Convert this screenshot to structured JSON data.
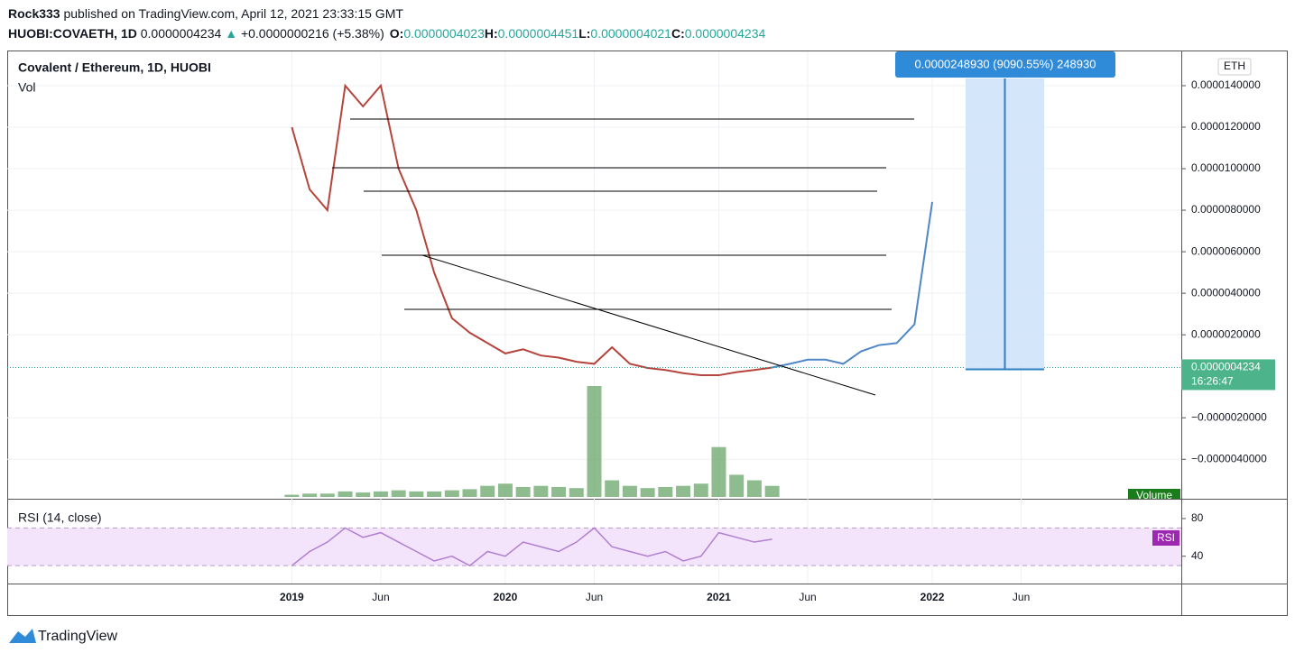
{
  "header": {
    "author": "Rock333",
    "published": "published on TradingView.com, April 12, 2021 23:33:15 GMT",
    "symbol": "HUOBI:COVAETH, 1D",
    "last": "0.0000004234",
    "arrow": "▲",
    "change": "+0.0000000216 (+5.38%)",
    "ohlc": [
      {
        "label": "O:",
        "value": "0.0000004023"
      },
      {
        "label": "H:",
        "value": "0.0000004451"
      },
      {
        "label": "L:",
        "value": "0.0000004021"
      },
      {
        "label": "C:",
        "value": "0.0000004234"
      }
    ]
  },
  "chart_data": [
    {
      "type": "line",
      "title": "Covalent / Ethereum, 1D, HUOBI",
      "subtitle": "Vol",
      "unit": "ETH",
      "x": [
        "2019-01",
        "2019-02",
        "2019-03",
        "2019-04",
        "2019-05",
        "2019-06",
        "2019-07",
        "2019-08",
        "2019-09",
        "2019-10",
        "2019-11",
        "2019-12",
        "2020-01",
        "2020-02",
        "2020-03",
        "2020-04",
        "2020-05",
        "2020-06",
        "2020-07",
        "2020-08",
        "2020-09",
        "2020-10",
        "2020-11",
        "2020-12",
        "2021-01",
        "2021-02",
        "2021-03",
        "2021-04",
        "2021-05",
        "2021-06",
        "2021-07",
        "2021-08",
        "2021-09",
        "2021-10",
        "2021-11",
        "2021-12",
        "2022-01"
      ],
      "series": [
        {
          "color": "#b5443c",
          "values": [
            1.2e-05,
            9e-06,
            8e-06,
            1.4e-05,
            1.3e-05,
            1.4e-05,
            1e-05,
            8e-06,
            5e-06,
            2.8e-06,
            2.1e-06,
            1.6e-06,
            1.1e-06,
            1.3e-06,
            1e-06,
            9e-07,
            7e-07,
            6e-07,
            1.4e-06,
            6e-07,
            4e-07,
            3e-07,
            1.5e-07,
            5e-08,
            5e-08,
            2e-07,
            3e-07,
            4.234e-07,
            null,
            null,
            null,
            null,
            null,
            null,
            null,
            null,
            null
          ]
        },
        {
          "color": "#4f86c6",
          "values": [
            null,
            null,
            null,
            null,
            null,
            null,
            null,
            null,
            null,
            null,
            null,
            null,
            null,
            null,
            null,
            null,
            null,
            null,
            null,
            null,
            null,
            null,
            null,
            null,
            null,
            null,
            null,
            4.234e-07,
            6e-07,
            8e-07,
            8e-07,
            6e-07,
            1.2e-06,
            1.5e-06,
            1.6e-06,
            2.5e-06,
            8.4e-06
          ]
        }
      ],
      "xlim": [
        "2017-09",
        "2023-03"
      ],
      "xticks": [
        {
          "value": "2019-01",
          "label": "2019"
        },
        {
          "value": "2019-06",
          "label": "Jun"
        },
        {
          "value": "2020-01",
          "label": "2020"
        },
        {
          "value": "2020-06",
          "label": "Jun"
        },
        {
          "value": "2021-01",
          "label": "2021"
        },
        {
          "value": "2021-06",
          "label": "Jun"
        },
        {
          "value": "2022-01",
          "label": "2022"
        },
        {
          "value": "2022-06",
          "label": "Jun"
        }
      ],
      "ylim": [
        -5.9e-06,
        1.565e-05
      ],
      "yticks": [
        {
          "value": 1.4e-05,
          "label": "0.0000140000"
        },
        {
          "value": 1.2e-05,
          "label": "0.0000120000"
        },
        {
          "value": 1e-05,
          "label": "0.0000100000"
        },
        {
          "value": 8e-06,
          "label": "0.0000080000"
        },
        {
          "value": 6e-06,
          "label": "0.0000060000"
        },
        {
          "value": 4e-06,
          "label": "0.0000040000"
        },
        {
          "value": 2e-06,
          "label": "0.0000020000"
        },
        {
          "value": -2e-06,
          "label": "−0.0000020000"
        },
        {
          "value": -4e-06,
          "label": "−0.0000040000"
        }
      ],
      "last_price": {
        "value": 4.234e-07,
        "label": "0.0000004234"
      },
      "countdown": "16:26:47",
      "measure": "0.0000248930 (9090.55%) 248930",
      "grid": true
    },
    {
      "type": "bar",
      "label": "Volume",
      "color": "#5ea05e",
      "x": [
        "2019-01",
        "2019-02",
        "2019-03",
        "2019-04",
        "2019-05",
        "2019-06",
        "2019-07",
        "2019-08",
        "2019-09",
        "2019-10",
        "2019-11",
        "2019-12",
        "2020-01",
        "2020-02",
        "2020-03",
        "2020-04",
        "2020-05",
        "2020-06",
        "2020-07",
        "2020-08",
        "2020-09",
        "2020-10",
        "2020-11",
        "2020-12",
        "2021-01",
        "2021-02",
        "2021-03",
        "2021-04"
      ],
      "values": [
        2,
        3,
        3,
        5,
        4,
        5,
        6,
        5,
        5,
        6,
        7,
        10,
        12,
        9,
        10,
        9,
        8,
        100,
        15,
        10,
        8,
        9,
        10,
        12,
        45,
        20,
        15,
        10
      ],
      "ylim": [
        0,
        100
      ]
    },
    {
      "type": "line",
      "title": "RSI (14, close)",
      "label": "RSI",
      "color": "#b07fd0",
      "x": [
        "2019-01",
        "2019-02",
        "2019-03",
        "2019-04",
        "2019-05",
        "2019-06",
        "2019-07",
        "2019-08",
        "2019-09",
        "2019-10",
        "2019-11",
        "2019-12",
        "2020-01",
        "2020-02",
        "2020-03",
        "2020-04",
        "2020-05",
        "2020-06",
        "2020-07",
        "2020-08",
        "2020-09",
        "2020-10",
        "2020-11",
        "2020-12",
        "2021-01",
        "2021-02",
        "2021-03",
        "2021-04"
      ],
      "values": [
        30,
        45,
        55,
        70,
        60,
        65,
        55,
        45,
        35,
        40,
        30,
        45,
        40,
        55,
        50,
        45,
        55,
        70,
        50,
        45,
        40,
        45,
        35,
        40,
        65,
        60,
        55,
        58
      ],
      "ylim": [
        11,
        101
      ],
      "yticks": [
        40,
        80
      ],
      "bands": [
        30,
        70
      ]
    }
  ],
  "footer": {
    "brand": "TradingView"
  }
}
